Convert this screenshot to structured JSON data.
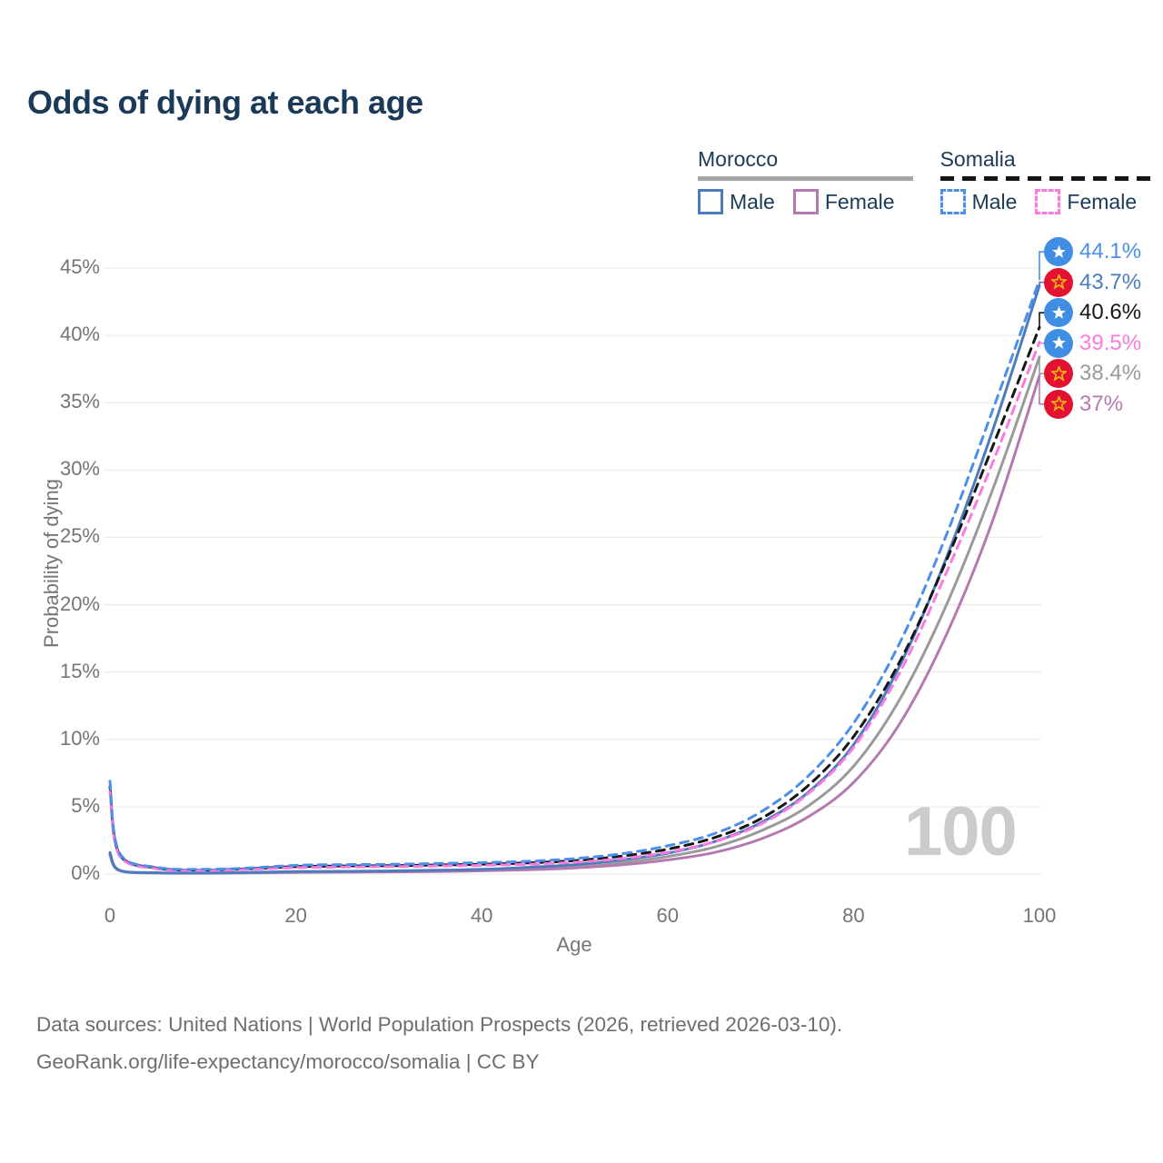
{
  "title": "Odds of dying at each age",
  "legend": {
    "groups": [
      {
        "country": "Morocco",
        "line_style": "solid",
        "underline_color": "#a5a5a5",
        "items": [
          {
            "label": "Male",
            "color": "#4d7cbe"
          },
          {
            "label": "Female",
            "color": "#b579b2"
          }
        ]
      },
      {
        "country": "Somalia",
        "line_style": "dashed",
        "underline_color": "#161616",
        "items": [
          {
            "label": "Male",
            "color": "#4b8fe8"
          },
          {
            "label": "Female",
            "color": "#fc7ae0"
          }
        ]
      }
    ]
  },
  "watermark": "100",
  "footer": {
    "line1": "Data sources: United Nations | World Population Prospects (2026, retrieved 2026-03-10).",
    "line2": "GeoRank.org/life-expectancy/morocco/somalia | CC BY"
  },
  "chart_data": {
    "type": "line",
    "title": "Odds of dying at each age",
    "xlabel": "Age",
    "ylabel": "Probability of dying",
    "xlim": [
      0,
      100
    ],
    "ylim": [
      0,
      47
    ],
    "x_ticks": [
      0,
      20,
      40,
      60,
      80,
      100
    ],
    "y_ticks": [
      0,
      5,
      10,
      15,
      20,
      25,
      30,
      35,
      40,
      45
    ],
    "y_tick_suffix": "%",
    "grid": "horizontal",
    "legend_position": "top-right",
    "x": [
      0,
      1,
      5,
      10,
      15,
      20,
      25,
      30,
      35,
      40,
      45,
      50,
      55,
      60,
      65,
      70,
      75,
      80,
      85,
      90,
      95,
      100
    ],
    "series": [
      {
        "name": "Morocco Both sexes",
        "country": "Morocco",
        "group": "Both sexes",
        "style": "solid",
        "color": "#9a9a9a",
        "values": [
          1.5,
          0.28,
          0.09,
          0.07,
          0.1,
          0.15,
          0.17,
          0.19,
          0.23,
          0.3,
          0.4,
          0.58,
          0.85,
          1.3,
          2.0,
          3.2,
          5.0,
          8.0,
          13.0,
          20.0,
          28.6,
          38.4
        ]
      },
      {
        "name": "Morocco Female",
        "country": "Morocco",
        "group": "Female",
        "style": "solid",
        "color": "#b579b2",
        "values": [
          1.4,
          0.26,
          0.08,
          0.06,
          0.09,
          0.12,
          0.14,
          0.16,
          0.19,
          0.24,
          0.32,
          0.46,
          0.68,
          1.05,
          1.6,
          2.6,
          4.2,
          6.8,
          11.2,
          17.8,
          26.3,
          37.0
        ]
      },
      {
        "name": "Morocco Male",
        "country": "Morocco",
        "group": "Male",
        "style": "solid",
        "color": "#4d7cbe",
        "values": [
          1.6,
          0.3,
          0.1,
          0.08,
          0.12,
          0.18,
          0.2,
          0.23,
          0.28,
          0.35,
          0.5,
          0.7,
          1.05,
          1.55,
          2.4,
          3.8,
          6.0,
          9.6,
          15.5,
          23.5,
          33.0,
          43.7
        ]
      },
      {
        "name": "Somalia Both sexes",
        "country": "Somalia",
        "group": "Both sexes",
        "style": "dashed",
        "color": "#161616",
        "values": [
          6.5,
          1.5,
          0.45,
          0.3,
          0.4,
          0.55,
          0.6,
          0.62,
          0.67,
          0.73,
          0.83,
          1.0,
          1.32,
          1.85,
          2.7,
          4.1,
          6.5,
          10.2,
          15.8,
          23.3,
          31.8,
          40.6
        ]
      },
      {
        "name": "Somalia Female",
        "country": "Somalia",
        "group": "Female",
        "style": "dashed",
        "color": "#fc7ae0",
        "values": [
          6.1,
          1.4,
          0.4,
          0.28,
          0.35,
          0.48,
          0.52,
          0.55,
          0.6,
          0.65,
          0.73,
          0.88,
          1.15,
          1.62,
          2.4,
          3.7,
          5.9,
          9.4,
          15.0,
          22.4,
          30.6,
          39.5
        ]
      },
      {
        "name": "Somalia Male",
        "country": "Somalia",
        "group": "Male",
        "style": "dashed",
        "color": "#4b8fe8",
        "values": [
          6.9,
          1.6,
          0.5,
          0.35,
          0.45,
          0.65,
          0.7,
          0.72,
          0.78,
          0.85,
          0.95,
          1.15,
          1.5,
          2.1,
          3.0,
          4.6,
          7.2,
          11.2,
          17.2,
          25.2,
          34.5,
          44.1
        ]
      }
    ],
    "end_labels": [
      {
        "value": "44.1%",
        "numeric": 44.1,
        "flag": "somalia",
        "series": "Somalia Male",
        "color": "#4b8fe8"
      },
      {
        "value": "43.7%",
        "numeric": 43.7,
        "flag": "morocco",
        "series": "Morocco Male",
        "color": "#4d7cbe"
      },
      {
        "value": "40.6%",
        "numeric": 40.6,
        "flag": "somalia",
        "series": "Somalia Both sexes",
        "color": "#161616"
      },
      {
        "value": "39.5%",
        "numeric": 39.5,
        "flag": "somalia",
        "series": "Somalia Female",
        "color": "#fc7ae0"
      },
      {
        "value": "38.4%",
        "numeric": 38.4,
        "flag": "morocco",
        "series": "Morocco Both sexes",
        "color": "#9a9a9a"
      },
      {
        "value": "37%",
        "numeric": 37.0,
        "flag": "morocco",
        "series": "Morocco Female",
        "color": "#b579b2"
      }
    ],
    "hover_age_indicator": "100"
  }
}
